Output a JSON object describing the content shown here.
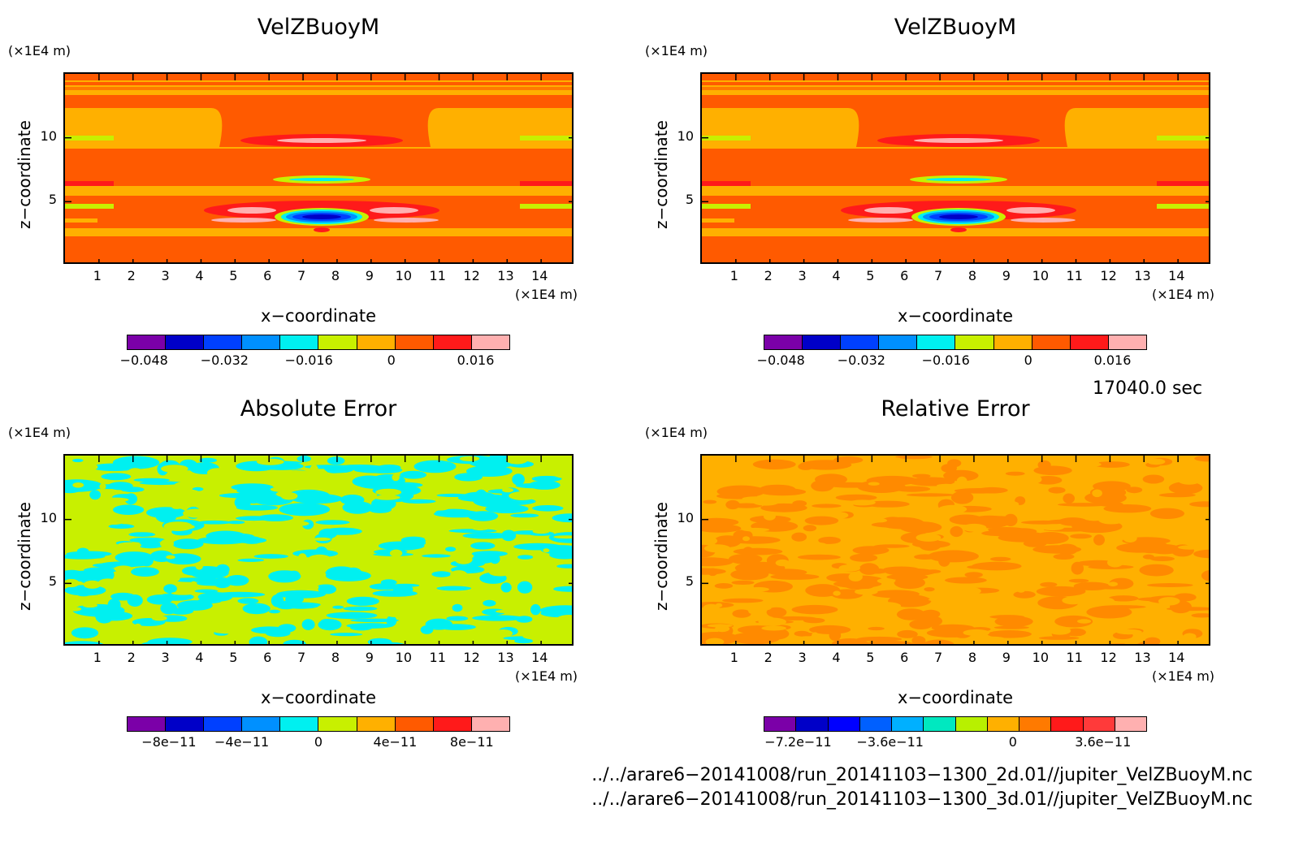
{
  "panels": [
    {
      "title": "VelZBuoyM",
      "xlabel": "x−coordinate",
      "ylabel": "z−coordinate",
      "x_unit": "(×1E4 m)",
      "y_unit": "(×1E4 m)",
      "field": "buoy",
      "colors": [
        "#7b00a8",
        "#0000c8",
        "#0040ff",
        "#0090ff",
        "#00f0f0",
        "#c8f000",
        "#ffb000",
        "#ff5a00",
        "#ff1a1a",
        "#ffb0b0"
      ],
      "colorbar_labels": [
        {
          "text": "−0.048",
          "pos": 0.045
        },
        {
          "text": "−0.032",
          "pos": 0.255
        },
        {
          "text": "−0.016",
          "pos": 0.475
        },
        {
          "text": "0",
          "pos": 0.69
        },
        {
          "text": "0.016",
          "pos": 0.91
        }
      ]
    },
    {
      "title": "VelZBuoyM",
      "xlabel": "x−coordinate",
      "ylabel": "z−coordinate",
      "x_unit": "(×1E4 m)",
      "y_unit": "(×1E4 m)",
      "field": "buoy",
      "colors": [
        "#7b00a8",
        "#0000c8",
        "#0040ff",
        "#0090ff",
        "#00f0f0",
        "#c8f000",
        "#ffb000",
        "#ff5a00",
        "#ff1a1a",
        "#ffb0b0"
      ],
      "colorbar_labels": [
        {
          "text": "−0.048",
          "pos": 0.045
        },
        {
          "text": "−0.032",
          "pos": 0.255
        },
        {
          "text": "−0.016",
          "pos": 0.475
        },
        {
          "text": "0",
          "pos": 0.69
        },
        {
          "text": "0.016",
          "pos": 0.91
        }
      ]
    },
    {
      "title": "Absolute Error",
      "xlabel": "x−coordinate",
      "ylabel": "z−coordinate",
      "x_unit": "(×1E4 m)",
      "y_unit": "(×1E4 m)",
      "field": "abs",
      "colors": [
        "#7b00a8",
        "#0000c8",
        "#0040ff",
        "#0090ff",
        "#00f0f0",
        "#c8f000",
        "#ffb000",
        "#ff5a00",
        "#ff1a1a",
        "#ffb0b0"
      ],
      "colorbar_labels": [
        {
          "text": "−8e−11",
          "pos": 0.11
        },
        {
          "text": "−4e−11",
          "pos": 0.3
        },
        {
          "text": "0",
          "pos": 0.5
        },
        {
          "text": "4e−11",
          "pos": 0.7
        },
        {
          "text": "8e−11",
          "pos": 0.9
        }
      ]
    },
    {
      "title": "Relative Error",
      "xlabel": "x−coordinate",
      "ylabel": "z−coordinate",
      "x_unit": "(×1E4 m)",
      "y_unit": "(×1E4 m)",
      "field": "rel",
      "colors": [
        "#7b00a8",
        "#0000c8",
        "#0000ff",
        "#0060ff",
        "#00b0ff",
        "#00e8c0",
        "#b8f000",
        "#ffb000",
        "#ff7a00",
        "#ff1a1a",
        "#ff3a3a",
        "#ffb0b0"
      ],
      "colorbar_labels": [
        {
          "text": "−7.2e−11",
          "pos": 0.09
        },
        {
          "text": "−3.6e−11",
          "pos": 0.33
        },
        {
          "text": "0",
          "pos": 0.65
        },
        {
          "text": "3.6e−11",
          "pos": 0.885
        }
      ]
    }
  ],
  "x_ticks": [
    "1",
    "2",
    "3",
    "4",
    "5",
    "6",
    "7",
    "8",
    "9",
    "10",
    "11",
    "12",
    "13",
    "14"
  ],
  "y_ticks": [
    "5",
    "10"
  ],
  "time_label": "17040.0 sec",
  "files": [
    "../../arare6−20141008/run_20141103−1300_2d.01//jupiter_VelZBuoyM.nc",
    "../../arare6−20141008/run_20141103−1300_3d.01//jupiter_VelZBuoyM.nc"
  ],
  "chart_data": [
    {
      "type": "heatmap",
      "title": "VelZBuoyM",
      "xlabel": "x−coordinate",
      "ylabel": "z−coordinate",
      "xlim": [
        0,
        15
      ],
      "ylim": [
        0,
        15
      ],
      "colorbar_ticks": [
        -0.048,
        -0.032,
        -0.016,
        0,
        0.016
      ]
    },
    {
      "type": "heatmap",
      "title": "VelZBuoyM",
      "xlabel": "x−coordinate",
      "ylabel": "z−coordinate",
      "xlim": [
        0,
        15
      ],
      "ylim": [
        0,
        15
      ],
      "colorbar_ticks": [
        -0.048,
        -0.032,
        -0.016,
        0,
        0.016
      ]
    },
    {
      "type": "heatmap",
      "title": "Absolute Error",
      "xlabel": "x−coordinate",
      "ylabel": "z−coordinate",
      "xlim": [
        0,
        15
      ],
      "ylim": [
        0,
        15
      ],
      "colorbar_ticks": [
        -8e-11,
        -4e-11,
        0,
        4e-11,
        8e-11
      ]
    },
    {
      "type": "heatmap",
      "title": "Relative Error",
      "xlabel": "x−coordinate",
      "ylabel": "z−coordinate",
      "xlim": [
        0,
        15
      ],
      "ylim": [
        0,
        15
      ],
      "colorbar_ticks": [
        -7.2e-11,
        -3.6e-11,
        0,
        3.6e-11
      ]
    }
  ]
}
